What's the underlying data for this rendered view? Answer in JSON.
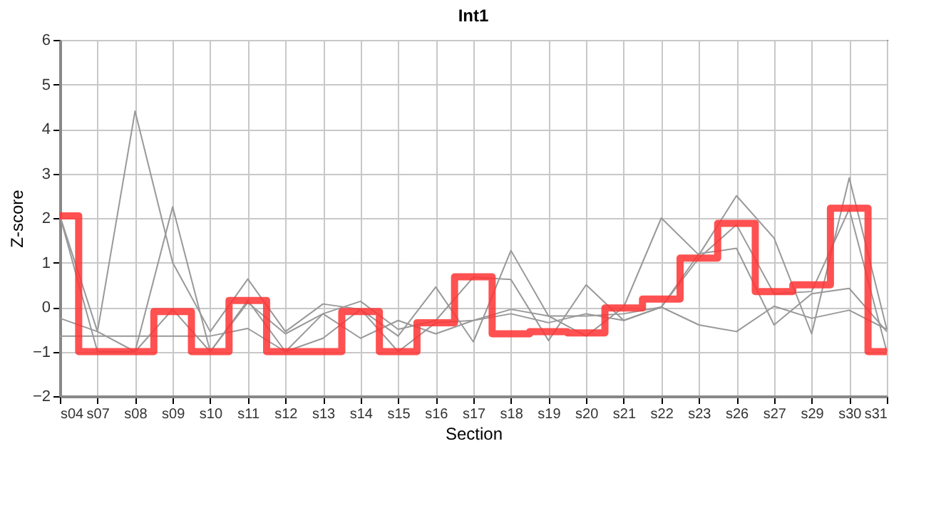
{
  "chart_data": {
    "type": "line",
    "title": "Int1",
    "xlabel": "Section",
    "ylabel": "Z-score",
    "categories": [
      "s04",
      "s07",
      "s08",
      "s09",
      "s10",
      "s11",
      "s12",
      "s13",
      "s14",
      "s15",
      "s16",
      "s17",
      "s18",
      "s19",
      "s20",
      "s21",
      "s22",
      "s23",
      "s26",
      "s27",
      "s29",
      "s30",
      "s31"
    ],
    "ylim": [
      -2,
      6
    ],
    "yticks": [
      -2,
      -1,
      0,
      1,
      2,
      3,
      4,
      5,
      6
    ],
    "grid": true,
    "series": [
      {
        "color": "#999999",
        "values": [
          2.05,
          -0.55,
          4.4,
          1.0,
          -0.55,
          0.63,
          -0.55,
          0.07,
          -0.05,
          -0.65,
          0.45,
          -0.78,
          1.27,
          -0.2,
          -0.65,
          0.0,
          2.0,
          1.17,
          2.5,
          1.55,
          -0.6,
          2.9,
          -0.5
        ]
      },
      {
        "color": "#999999",
        "values": [
          2.05,
          -1,
          -1,
          2.25,
          -1,
          0.1,
          -0.6,
          -0.15,
          0.13,
          -0.5,
          -0.3,
          0.67,
          0.62,
          -0.75,
          0.5,
          -0.3,
          0.0,
          1.2,
          1.32,
          -0.4,
          0.3,
          0.42,
          -0.55
        ]
      },
      {
        "color": "#999999",
        "values": [
          -0.25,
          -0.55,
          -1,
          -0.05,
          -1,
          0.15,
          -1,
          -0.7,
          -0.05,
          -1,
          -0.35,
          -0.3,
          -0.15,
          -0.35,
          -0.15,
          -0.3,
          0.0,
          -0.4,
          -0.55,
          0.02,
          -0.25,
          -0.07,
          -0.5
        ]
      },
      {
        "color": "#999999",
        "values": [
          -0.65,
          -0.65,
          -0.65,
          -0.65,
          -0.65,
          -0.48,
          -1,
          -0.15,
          -0.7,
          -0.3,
          -0.6,
          -0.3,
          -0.05,
          -0.2,
          -0.2,
          -0.15,
          0.0,
          1.1,
          1.85,
          0.3,
          0.35,
          2.2,
          -1
        ]
      },
      {
        "type": "step",
        "color": "#ff3333",
        "values": [
          2.05,
          -1,
          -1,
          -0.1,
          -1,
          0.15,
          -1,
          -1,
          -0.1,
          -1,
          -0.35,
          0.68,
          -0.6,
          -0.55,
          -0.58,
          -0.02,
          0.18,
          1.1,
          1.88,
          0.35,
          0.5,
          2.22,
          -1
        ]
      }
    ]
  }
}
